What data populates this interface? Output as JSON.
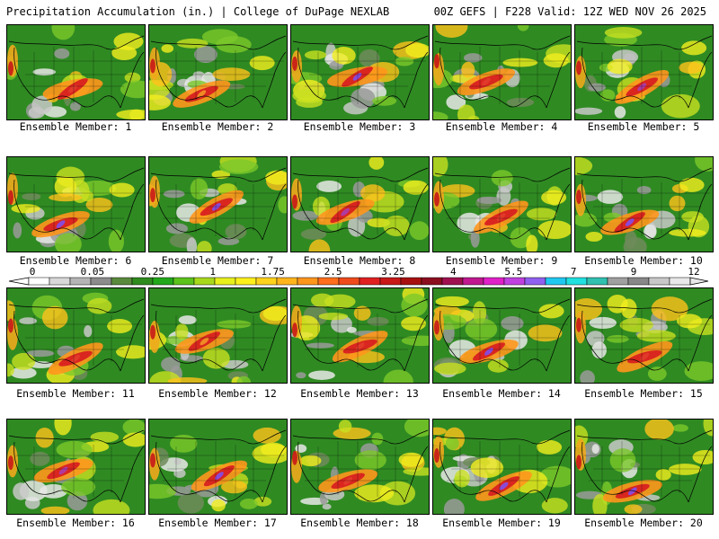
{
  "header": {
    "title_left": "Precipitation Accumulation (in.) | College of DuPage NEXLAB",
    "title_right": "00Z GEFS | F228 Valid: 12Z WED NOV 26 2025"
  },
  "members": [
    {
      "label": "Ensemble Member: 1",
      "accent": "#e23a2a"
    },
    {
      "label": "Ensemble Member: 2",
      "accent": "#f08a24"
    },
    {
      "label": "Ensemble Member: 3",
      "accent": "#8a4ad8"
    },
    {
      "label": "Ensemble Member: 4",
      "accent": "#e23a2a"
    },
    {
      "label": "Ensemble Member: 5",
      "accent": "#b03aa0"
    },
    {
      "label": "Ensemble Member: 6",
      "accent": "#8a4ad8"
    },
    {
      "label": "Ensemble Member: 7",
      "accent": "#8a4ad8"
    },
    {
      "label": "Ensemble Member: 8",
      "accent": "#b03aa0"
    },
    {
      "label": "Ensemble Member: 9",
      "accent": "#e23a2a"
    },
    {
      "label": "Ensemble Member: 10",
      "accent": "#8a4ad8"
    },
    {
      "label": "Ensemble Member: 11",
      "accent": "#e23a2a"
    },
    {
      "label": "Ensemble Member: 12",
      "accent": "#f08a24"
    },
    {
      "label": "Ensemble Member: 13",
      "accent": "#e23a2a"
    },
    {
      "label": "Ensemble Member: 14",
      "accent": "#8a4ad8"
    },
    {
      "label": "Ensemble Member: 15",
      "accent": "#e23a2a"
    },
    {
      "label": "Ensemble Member: 16",
      "accent": "#b03aa0"
    },
    {
      "label": "Ensemble Member: 17",
      "accent": "#8a4ad8"
    },
    {
      "label": "Ensemble Member: 18",
      "accent": "#e23a2a"
    },
    {
      "label": "Ensemble Member: 19",
      "accent": "#8a4ad8"
    },
    {
      "label": "Ensemble Member: 20",
      "accent": "#8a4ad8"
    }
  ],
  "colorbar": {
    "tick_labels": [
      "0",
      "0.05",
      "0.25",
      "1",
      "1.75",
      "2.5",
      "3.25",
      "4",
      "5.5",
      "7",
      "9",
      "12"
    ],
    "colors": [
      "#ffffff",
      "#d8d8d8",
      "#b4b4b4",
      "#8c8c8c",
      "#5a8a3c",
      "#2e8b1e",
      "#22a81a",
      "#5cc21c",
      "#a8d81c",
      "#e8f01c",
      "#fff01c",
      "#ffd21c",
      "#ffb41c",
      "#ff961c",
      "#ff6e1c",
      "#f04a1c",
      "#e02020",
      "#c81818",
      "#a81010",
      "#8c0c20",
      "#a01050",
      "#c01890",
      "#e020c8",
      "#c040e0",
      "#9060f0",
      "#20c8f0",
      "#20e0e0",
      "#30c0b0",
      "#a0a0a0",
      "#888888",
      "#c8c8c8",
      "#e8e8e8"
    ]
  }
}
